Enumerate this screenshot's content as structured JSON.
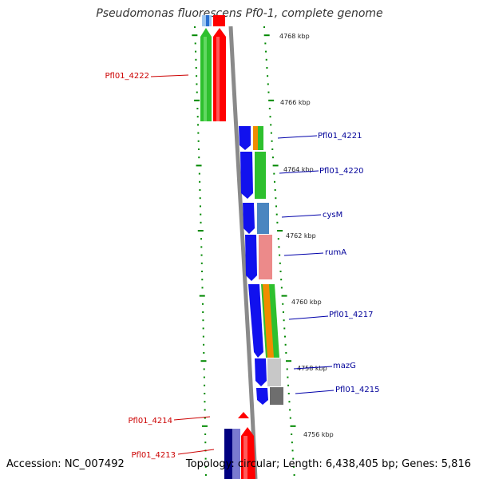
{
  "title": "Pseudomonas fluorescens Pf0-1, complete genome",
  "footer": {
    "accession": "Accession: NC_007492",
    "summary": "Topology: circular; Length: 6,438,405 bp; Genes: 5,816"
  },
  "kbp_labels": [
    "4768 kbp",
    "4766 kbp",
    "4764 kbp",
    "4762 kbp",
    "4760 kbp",
    "4758 kbp",
    "4756 kbp"
  ],
  "gene_labels": {
    "reverse": [
      "Pfl01_4222",
      "Pfl01_4214",
      "Pfl01_4213"
    ],
    "forward": [
      "Pfl01_4221",
      "Pfl01_4220",
      "cysM",
      "rumA",
      "Pfl01_4217",
      "mazG",
      "Pfl01_4215"
    ]
  },
  "colors": {
    "reverse_label": "#cc0000",
    "forward_label": "#000099",
    "forward_strand": "#0000e0",
    "reverse_strand": "#ff0000",
    "backbone": "#808080",
    "ticks": "#008800"
  }
}
